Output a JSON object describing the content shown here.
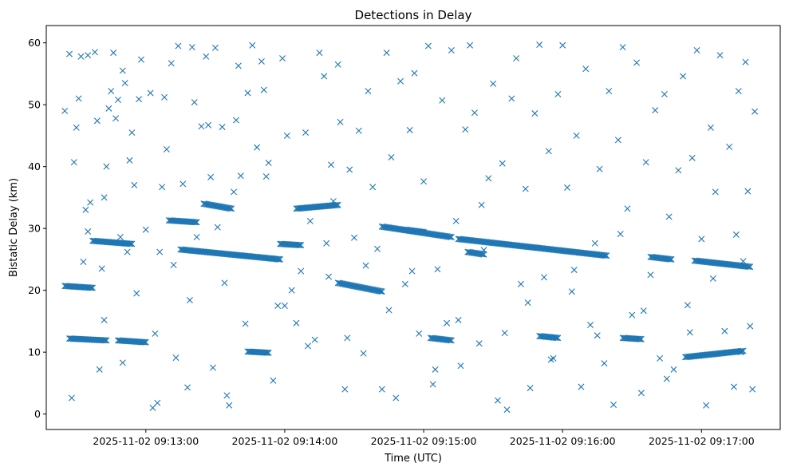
{
  "chart_data": {
    "type": "scatter",
    "title": "Detections in Delay",
    "xlabel": "Time (UTC)",
    "ylabel": "Bistatic Delay (km)",
    "x_unit": "time (UTC, HH:MM:SS on 2025-11-02)",
    "xlim": [
      "09:12:17",
      "09:17:34"
    ],
    "ylim": [
      -2.5,
      62.8
    ],
    "x_ticks": [
      "2025-11-02 09:13:00",
      "2025-11-02 09:14:00",
      "2025-11-02 09:15:00",
      "2025-11-02 09:16:00",
      "2025-11-02 09:17:00"
    ],
    "y_ticks": [
      "0",
      "10",
      "20",
      "30",
      "40",
      "50",
      "60"
    ],
    "grid": false,
    "legend": "none",
    "marker": "x",
    "color": "#1f77b4",
    "series": [
      {
        "tracks": [
          {
            "start": [
              "09:12:25",
              20.7
            ],
            "end": [
              "09:12:37",
              20.4
            ]
          },
          {
            "start": [
              "09:12:27",
              12.2
            ],
            "end": [
              "09:12:43",
              11.9
            ]
          },
          {
            "start": [
              "09:12:37",
              28.0
            ],
            "end": [
              "09:12:54",
              27.5
            ]
          },
          {
            "start": [
              "09:12:48",
              11.9
            ],
            "end": [
              "09:13:00",
              11.6
            ]
          },
          {
            "start": [
              "09:13:10",
              31.3
            ],
            "end": [
              "09:13:22",
              31.0
            ]
          },
          {
            "start": [
              "09:13:15",
              26.6
            ],
            "end": [
              "09:13:58",
              25.0
            ]
          },
          {
            "start": [
              "09:13:25",
              34.0
            ],
            "end": [
              "09:13:37",
              33.2
            ]
          },
          {
            "start": [
              "09:13:44",
              10.1
            ],
            "end": [
              "09:13:53",
              9.9
            ]
          },
          {
            "start": [
              "09:13:58",
              27.5
            ],
            "end": [
              "09:14:07",
              27.3
            ]
          },
          {
            "start": [
              "09:14:05",
              33.2
            ],
            "end": [
              "09:14:23",
              33.8
            ]
          },
          {
            "start": [
              "09:14:23",
              21.2
            ],
            "end": [
              "09:14:42",
              19.8
            ]
          },
          {
            "start": [
              "09:14:42",
              30.3
            ],
            "end": [
              "09:15:12",
              28.6
            ]
          },
          {
            "start": [
              "09:14:52",
              29.8
            ],
            "end": [
              "09:15:00",
              29.4
            ]
          },
          {
            "start": [
              "09:15:03",
              12.3
            ],
            "end": [
              "09:15:12",
              11.9
            ]
          },
          {
            "start": [
              "09:15:15",
              28.3
            ],
            "end": [
              "09:16:19",
              25.6
            ]
          },
          {
            "start": [
              "09:15:19",
              26.2
            ],
            "end": [
              "09:15:26",
              25.8
            ]
          },
          {
            "start": [
              "09:15:50",
              12.6
            ],
            "end": [
              "09:15:58",
              12.3
            ]
          },
          {
            "start": [
              "09:16:26",
              12.3
            ],
            "end": [
              "09:16:34",
              12.1
            ]
          },
          {
            "start": [
              "09:16:38",
              25.4
            ],
            "end": [
              "09:16:47",
              25.0
            ]
          },
          {
            "start": [
              "09:16:53",
              9.2
            ],
            "end": [
              "09:17:18",
              10.2
            ]
          },
          {
            "start": [
              "09:16:57",
              24.8
            ],
            "end": [
              "09:17:21",
              23.8
            ]
          }
        ],
        "points": [
          [
            "09:12:25",
            49.0
          ],
          [
            "09:12:27",
            58.2
          ],
          [
            "09:12:28",
            2.6
          ],
          [
            "09:12:29",
            40.7
          ],
          [
            "09:12:30",
            46.3
          ],
          [
            "09:12:31",
            51.0
          ],
          [
            "09:12:32",
            57.8
          ],
          [
            "09:12:33",
            24.6
          ],
          [
            "09:12:34",
            33.0
          ],
          [
            "09:12:35",
            58.0
          ],
          [
            "09:12:36",
            34.2
          ],
          [
            "09:12:38",
            58.5
          ],
          [
            "09:12:39",
            47.4
          ],
          [
            "09:12:40",
            7.2
          ],
          [
            "09:12:41",
            23.5
          ],
          [
            "09:12:42",
            35.0
          ],
          [
            "09:12:43",
            40.0
          ],
          [
            "09:12:44",
            49.4
          ],
          [
            "09:12:45",
            52.2
          ],
          [
            "09:12:46",
            58.4
          ],
          [
            "09:12:47",
            47.8
          ],
          [
            "09:12:48",
            50.8
          ],
          [
            "09:12:49",
            28.6
          ],
          [
            "09:12:50",
            55.5
          ],
          [
            "09:12:51",
            53.5
          ],
          [
            "09:12:52",
            26.2
          ],
          [
            "09:12:53",
            41.0
          ],
          [
            "09:12:54",
            45.5
          ],
          [
            "09:12:55",
            37.0
          ],
          [
            "09:12:56",
            19.5
          ],
          [
            "09:12:57",
            50.9
          ],
          [
            "09:12:58",
            57.3
          ],
          [
            "09:13:00",
            29.8
          ],
          [
            "09:13:02",
            51.9
          ],
          [
            "09:13:03",
            1.0
          ],
          [
            "09:13:05",
            1.8
          ],
          [
            "09:13:06",
            26.2
          ],
          [
            "09:13:07",
            36.7
          ],
          [
            "09:13:08",
            51.2
          ],
          [
            "09:13:09",
            42.8
          ],
          [
            "09:13:11",
            56.7
          ],
          [
            "09:13:13",
            9.1
          ],
          [
            "09:13:14",
            59.5
          ],
          [
            "09:13:16",
            37.2
          ],
          [
            "09:13:18",
            4.3
          ],
          [
            "09:13:20",
            59.3
          ],
          [
            "09:13:21",
            50.4
          ],
          [
            "09:13:22",
            28.6
          ],
          [
            "09:13:24",
            46.5
          ],
          [
            "09:13:26",
            57.8
          ],
          [
            "09:13:27",
            46.7
          ],
          [
            "09:13:28",
            38.3
          ],
          [
            "09:13:30",
            59.2
          ],
          [
            "09:13:31",
            30.2
          ],
          [
            "09:13:33",
            46.4
          ],
          [
            "09:13:35",
            3.0
          ],
          [
            "09:13:36",
            1.4
          ],
          [
            "09:13:38",
            35.9
          ],
          [
            "09:13:39",
            47.5
          ],
          [
            "09:13:40",
            56.3
          ],
          [
            "09:13:41",
            38.5
          ],
          [
            "09:13:44",
            51.9
          ],
          [
            "09:13:46",
            59.6
          ],
          [
            "09:13:48",
            43.1
          ],
          [
            "09:13:50",
            57.0
          ],
          [
            "09:13:51",
            52.4
          ],
          [
            "09:13:53",
            40.6
          ],
          [
            "09:13:55",
            5.4
          ],
          [
            "09:13:57",
            17.5
          ],
          [
            "09:13:59",
            57.5
          ],
          [
            "09:14:01",
            45.0
          ],
          [
            "09:14:03",
            20.0
          ],
          [
            "09:14:05",
            14.7
          ],
          [
            "09:14:07",
            23.1
          ],
          [
            "09:14:09",
            45.5
          ],
          [
            "09:14:11",
            31.2
          ],
          [
            "09:14:13",
            12.0
          ],
          [
            "09:14:15",
            58.4
          ],
          [
            "09:14:17",
            54.6
          ],
          [
            "09:14:19",
            22.2
          ],
          [
            "09:14:20",
            40.3
          ],
          [
            "09:14:21",
            34.4
          ],
          [
            "09:14:23",
            56.5
          ],
          [
            "09:14:24",
            47.2
          ],
          [
            "09:14:26",
            4.0
          ],
          [
            "09:14:28",
            39.5
          ],
          [
            "09:14:30",
            28.5
          ],
          [
            "09:14:32",
            45.8
          ],
          [
            "09:14:34",
            9.8
          ],
          [
            "09:14:36",
            52.2
          ],
          [
            "09:14:38",
            36.7
          ],
          [
            "09:14:40",
            26.7
          ],
          [
            "09:14:42",
            4.0
          ],
          [
            "09:14:44",
            58.4
          ],
          [
            "09:14:46",
            41.5
          ],
          [
            "09:14:48",
            2.6
          ],
          [
            "09:14:50",
            53.8
          ],
          [
            "09:14:52",
            21.0
          ],
          [
            "09:14:54",
            45.9
          ],
          [
            "09:14:56",
            55.1
          ],
          [
            "09:14:58",
            13.0
          ],
          [
            "09:15:00",
            37.6
          ],
          [
            "09:15:02",
            59.5
          ],
          [
            "09:15:04",
            4.8
          ],
          [
            "09:15:06",
            23.4
          ],
          [
            "09:15:08",
            50.7
          ],
          [
            "09:15:10",
            14.7
          ],
          [
            "09:15:12",
            58.8
          ],
          [
            "09:15:14",
            31.2
          ],
          [
            "09:15:16",
            7.8
          ],
          [
            "09:15:18",
            46.0
          ],
          [
            "09:15:20",
            59.6
          ],
          [
            "09:15:22",
            48.7
          ],
          [
            "09:15:24",
            11.4
          ],
          [
            "09:15:26",
            26.5
          ],
          [
            "09:15:28",
            38.1
          ],
          [
            "09:15:30",
            53.4
          ],
          [
            "09:15:32",
            2.2
          ],
          [
            "09:15:34",
            40.5
          ],
          [
            "09:15:36",
            0.7
          ],
          [
            "09:15:38",
            51.0
          ],
          [
            "09:15:40",
            57.5
          ],
          [
            "09:15:42",
            21.0
          ],
          [
            "09:15:44",
            36.4
          ],
          [
            "09:15:46",
            4.2
          ],
          [
            "09:15:48",
            48.6
          ],
          [
            "09:15:50",
            59.7
          ],
          [
            "09:15:52",
            22.1
          ],
          [
            "09:15:54",
            42.5
          ],
          [
            "09:15:56",
            9.0
          ],
          [
            "09:15:58",
            51.7
          ],
          [
            "09:16:00",
            59.6
          ],
          [
            "09:16:02",
            36.6
          ],
          [
            "09:16:04",
            19.8
          ],
          [
            "09:16:06",
            45.0
          ],
          [
            "09:16:08",
            4.4
          ],
          [
            "09:16:10",
            55.8
          ],
          [
            "09:16:12",
            14.4
          ],
          [
            "09:16:14",
            27.6
          ],
          [
            "09:16:16",
            39.6
          ],
          [
            "09:16:18",
            8.2
          ],
          [
            "09:16:20",
            52.2
          ],
          [
            "09:16:22",
            1.5
          ],
          [
            "09:16:24",
            44.3
          ],
          [
            "09:16:26",
            59.3
          ],
          [
            "09:16:28",
            33.2
          ],
          [
            "09:16:30",
            16.0
          ],
          [
            "09:16:32",
            56.8
          ],
          [
            "09:16:34",
            3.4
          ],
          [
            "09:16:36",
            40.7
          ],
          [
            "09:16:38",
            22.5
          ],
          [
            "09:16:40",
            49.1
          ],
          [
            "09:16:42",
            9.0
          ],
          [
            "09:16:44",
            51.7
          ],
          [
            "09:16:46",
            31.9
          ],
          [
            "09:16:48",
            7.2
          ],
          [
            "09:16:50",
            39.4
          ],
          [
            "09:16:52",
            54.6
          ],
          [
            "09:16:54",
            17.6
          ],
          [
            "09:16:56",
            41.4
          ],
          [
            "09:16:58",
            58.8
          ],
          [
            "09:17:00",
            28.3
          ],
          [
            "09:17:02",
            1.4
          ],
          [
            "09:17:04",
            46.3
          ],
          [
            "09:17:06",
            35.9
          ],
          [
            "09:17:08",
            58.0
          ],
          [
            "09:17:10",
            13.4
          ],
          [
            "09:17:12",
            43.2
          ],
          [
            "09:17:14",
            4.4
          ],
          [
            "09:17:16",
            52.2
          ],
          [
            "09:17:18",
            24.7
          ],
          [
            "09:17:19",
            56.9
          ],
          [
            "09:17:20",
            36.0
          ],
          [
            "09:17:21",
            14.2
          ],
          [
            "09:17:22",
            4.0
          ],
          [
            "09:17:23",
            48.9
          ],
          [
            "09:12:35",
            29.5
          ],
          [
            "09:12:42",
            15.2
          ],
          [
            "09:12:50",
            8.3
          ],
          [
            "09:13:04",
            13.0
          ],
          [
            "09:13:12",
            24.1
          ],
          [
            "09:13:19",
            18.4
          ],
          [
            "09:13:29",
            7.5
          ],
          [
            "09:13:34",
            21.2
          ],
          [
            "09:13:43",
            14.6
          ],
          [
            "09:13:52",
            38.4
          ],
          [
            "09:14:00",
            17.5
          ],
          [
            "09:14:10",
            11.0
          ],
          [
            "09:14:18",
            27.6
          ],
          [
            "09:14:27",
            12.3
          ],
          [
            "09:14:35",
            24.0
          ],
          [
            "09:14:45",
            16.8
          ],
          [
            "09:14:55",
            23.1
          ],
          [
            "09:15:05",
            7.2
          ],
          [
            "09:15:15",
            15.2
          ],
          [
            "09:15:25",
            33.8
          ],
          [
            "09:15:35",
            13.1
          ],
          [
            "09:15:45",
            18.0
          ],
          [
            "09:15:55",
            8.8
          ],
          [
            "09:16:05",
            23.3
          ],
          [
            "09:16:15",
            12.7
          ],
          [
            "09:16:25",
            29.1
          ],
          [
            "09:16:35",
            16.7
          ],
          [
            "09:16:45",
            5.7
          ],
          [
            "09:16:55",
            13.2
          ],
          [
            "09:17:05",
            21.9
          ],
          [
            "09:17:15",
            29.0
          ],
          [
            "09:17:17",
            10.0
          ]
        ]
      }
    ]
  }
}
